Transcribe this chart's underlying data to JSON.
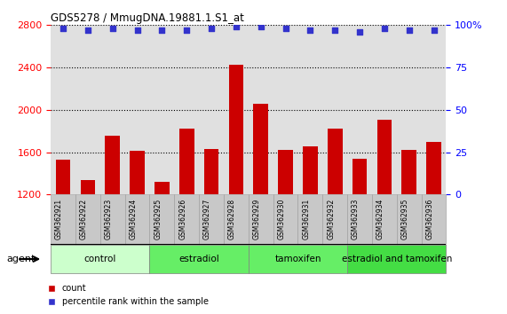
{
  "title": "GDS5278 / MmugDNA.19881.1.S1_at",
  "samples": [
    "GSM362921",
    "GSM362922",
    "GSM362923",
    "GSM362924",
    "GSM362925",
    "GSM362926",
    "GSM362927",
    "GSM362928",
    "GSM362929",
    "GSM362930",
    "GSM362931",
    "GSM362932",
    "GSM362933",
    "GSM362934",
    "GSM362935",
    "GSM362936"
  ],
  "bar_values": [
    1530,
    1340,
    1760,
    1610,
    1320,
    1820,
    1630,
    2430,
    2060,
    1620,
    1660,
    1820,
    1540,
    1910,
    1620,
    1700
  ],
  "percentile_values": [
    98,
    97,
    98,
    97,
    97,
    97,
    98,
    99,
    99,
    98,
    97,
    97,
    96,
    98,
    97,
    97
  ],
  "bar_color": "#cc0000",
  "dot_color": "#3333cc",
  "ylim_left": [
    1200,
    2800
  ],
  "ylim_right": [
    0,
    100
  ],
  "yticks_left": [
    1200,
    1600,
    2000,
    2400,
    2800
  ],
  "yticks_right": [
    0,
    25,
    50,
    75,
    100
  ],
  "groups": [
    {
      "label": "control",
      "start": 0,
      "end": 4,
      "color": "#ccffcc"
    },
    {
      "label": "estradiol",
      "start": 4,
      "end": 8,
      "color": "#66ee66"
    },
    {
      "label": "tamoxifen",
      "start": 8,
      "end": 12,
      "color": "#66ee66"
    },
    {
      "label": "estradiol and tamoxifen",
      "start": 12,
      "end": 16,
      "color": "#44dd44"
    }
  ],
  "agent_label": "agent",
  "legend_count": "count",
  "legend_percentile": "percentile rank within the sample",
  "background_color": "#ffffff",
  "plot_bg_color": "#e0e0e0",
  "sample_box_color": "#c8c8c8"
}
